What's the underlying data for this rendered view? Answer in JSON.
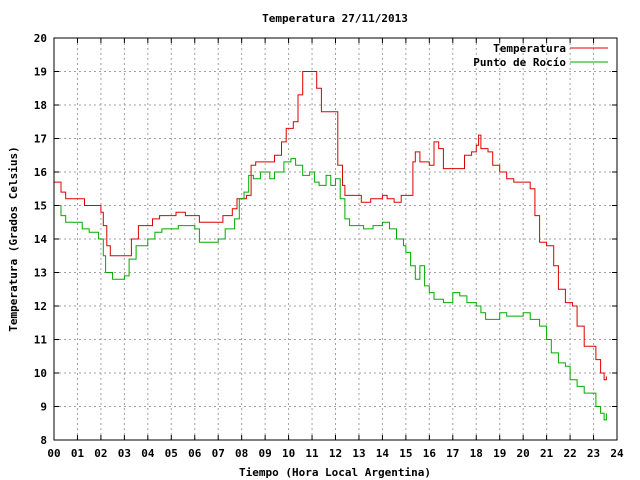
{
  "chart_data": {
    "type": "line",
    "title": "Temperatura 27/11/2013",
    "xlabel": "Tiempo (Hora Local Argentina)",
    "ylabel": "Temperatura (Grados Celsius)",
    "xlim": [
      0,
      24
    ],
    "ylim": [
      8,
      20
    ],
    "grid": true,
    "legend_position": "top-right",
    "x_tick_labels": [
      "00",
      "01",
      "02",
      "03",
      "04",
      "05",
      "06",
      "07",
      "08",
      "09",
      "10",
      "11",
      "12",
      "13",
      "14",
      "15",
      "16",
      "17",
      "18",
      "19",
      "20",
      "21",
      "22",
      "23",
      "24"
    ],
    "y_tick_labels": [
      "8",
      "9",
      "10",
      "11",
      "12",
      "13",
      "14",
      "15",
      "16",
      "17",
      "18",
      "19",
      "20"
    ],
    "series": [
      {
        "name": "Temperatura",
        "color": "#dd0000",
        "points": [
          [
            0,
            15.7
          ],
          [
            0.3,
            15.4
          ],
          [
            0.5,
            15.2
          ],
          [
            1.2,
            15.2
          ],
          [
            1.3,
            15.0
          ],
          [
            2.0,
            14.8
          ],
          [
            2.1,
            14.4
          ],
          [
            2.25,
            13.8
          ],
          [
            2.4,
            13.5
          ],
          [
            3.0,
            13.5
          ],
          [
            3.3,
            14.0
          ],
          [
            3.6,
            14.4
          ],
          [
            4.0,
            14.4
          ],
          [
            4.2,
            14.6
          ],
          [
            4.5,
            14.7
          ],
          [
            5.0,
            14.7
          ],
          [
            5.2,
            14.8
          ],
          [
            5.6,
            14.7
          ],
          [
            6.0,
            14.7
          ],
          [
            6.2,
            14.5
          ],
          [
            7.0,
            14.5
          ],
          [
            7.2,
            14.7
          ],
          [
            7.6,
            14.9
          ],
          [
            7.8,
            15.2
          ],
          [
            8.2,
            15.3
          ],
          [
            8.4,
            16.2
          ],
          [
            8.6,
            16.3
          ],
          [
            9.2,
            16.3
          ],
          [
            9.4,
            16.5
          ],
          [
            9.7,
            16.9
          ],
          [
            9.9,
            17.3
          ],
          [
            10.2,
            17.5
          ],
          [
            10.4,
            18.3
          ],
          [
            10.6,
            19.0
          ],
          [
            11.0,
            19.0
          ],
          [
            11.2,
            18.5
          ],
          [
            11.4,
            17.8
          ],
          [
            11.9,
            17.8
          ],
          [
            12.1,
            16.2
          ],
          [
            12.3,
            15.6
          ],
          [
            12.4,
            15.3
          ],
          [
            13.0,
            15.3
          ],
          [
            13.1,
            15.1
          ],
          [
            13.5,
            15.2
          ],
          [
            13.7,
            15.2
          ],
          [
            14.0,
            15.3
          ],
          [
            14.2,
            15.2
          ],
          [
            14.5,
            15.1
          ],
          [
            14.8,
            15.3
          ],
          [
            15.1,
            15.3
          ],
          [
            15.3,
            16.3
          ],
          [
            15.4,
            16.6
          ],
          [
            15.6,
            16.3
          ],
          [
            16.0,
            16.2
          ],
          [
            16.2,
            16.9
          ],
          [
            16.4,
            16.7
          ],
          [
            16.6,
            16.1
          ],
          [
            17.2,
            16.1
          ],
          [
            17.5,
            16.5
          ],
          [
            17.8,
            16.6
          ],
          [
            18.0,
            16.8
          ],
          [
            18.1,
            17.1
          ],
          [
            18.2,
            16.7
          ],
          [
            18.5,
            16.6
          ],
          [
            18.7,
            16.2
          ],
          [
            19.0,
            16.0
          ],
          [
            19.3,
            15.8
          ],
          [
            19.6,
            15.7
          ],
          [
            20.0,
            15.7
          ],
          [
            20.3,
            15.5
          ],
          [
            20.5,
            14.7
          ],
          [
            20.7,
            13.9
          ],
          [
            21.0,
            13.8
          ],
          [
            21.3,
            13.2
          ],
          [
            21.5,
            12.5
          ],
          [
            21.8,
            12.1
          ],
          [
            22.1,
            12.0
          ],
          [
            22.3,
            11.4
          ],
          [
            22.6,
            10.8
          ],
          [
            22.9,
            10.8
          ],
          [
            23.1,
            10.4
          ],
          [
            23.3,
            10.0
          ],
          [
            23.45,
            9.8
          ],
          [
            23.55,
            9.9
          ]
        ]
      },
      {
        "name": "Punto de Rocío",
        "color": "#00aa00",
        "points": [
          [
            0,
            15.0
          ],
          [
            0.3,
            14.7
          ],
          [
            0.5,
            14.5
          ],
          [
            1.0,
            14.5
          ],
          [
            1.2,
            14.3
          ],
          [
            1.5,
            14.2
          ],
          [
            1.9,
            14.0
          ],
          [
            2.1,
            13.5
          ],
          [
            2.2,
            13.0
          ],
          [
            2.5,
            12.8
          ],
          [
            3.0,
            12.9
          ],
          [
            3.2,
            13.4
          ],
          [
            3.5,
            13.8
          ],
          [
            4.0,
            14.0
          ],
          [
            4.3,
            14.2
          ],
          [
            4.6,
            14.3
          ],
          [
            5.0,
            14.3
          ],
          [
            5.3,
            14.4
          ],
          [
            6.0,
            14.3
          ],
          [
            6.2,
            13.9
          ],
          [
            7.0,
            14.0
          ],
          [
            7.3,
            14.3
          ],
          [
            7.7,
            14.6
          ],
          [
            7.9,
            15.2
          ],
          [
            8.1,
            15.4
          ],
          [
            8.3,
            15.9
          ],
          [
            8.5,
            15.8
          ],
          [
            8.8,
            16.0
          ],
          [
            9.2,
            15.8
          ],
          [
            9.4,
            16.0
          ],
          [
            9.8,
            16.3
          ],
          [
            10.1,
            16.4
          ],
          [
            10.3,
            16.2
          ],
          [
            10.6,
            15.9
          ],
          [
            10.9,
            16.0
          ],
          [
            11.1,
            15.7
          ],
          [
            11.3,
            15.6
          ],
          [
            11.6,
            15.9
          ],
          [
            11.8,
            15.6
          ],
          [
            12.0,
            15.8
          ],
          [
            12.2,
            15.2
          ],
          [
            12.4,
            14.6
          ],
          [
            12.6,
            14.4
          ],
          [
            13.0,
            14.4
          ],
          [
            13.2,
            14.3
          ],
          [
            13.6,
            14.4
          ],
          [
            14.0,
            14.5
          ],
          [
            14.3,
            14.3
          ],
          [
            14.6,
            14.0
          ],
          [
            14.9,
            13.8
          ],
          [
            15.0,
            13.6
          ],
          [
            15.2,
            13.2
          ],
          [
            15.4,
            12.8
          ],
          [
            15.6,
            13.2
          ],
          [
            15.8,
            12.6
          ],
          [
            16.0,
            12.4
          ],
          [
            16.2,
            12.2
          ],
          [
            16.4,
            12.2
          ],
          [
            16.6,
            12.1
          ],
          [
            17.0,
            12.4
          ],
          [
            17.3,
            12.3
          ],
          [
            17.6,
            12.1
          ],
          [
            18.0,
            12.0
          ],
          [
            18.2,
            11.8
          ],
          [
            18.4,
            11.6
          ],
          [
            18.7,
            11.6
          ],
          [
            19.0,
            11.8
          ],
          [
            19.3,
            11.7
          ],
          [
            19.6,
            11.7
          ],
          [
            20.0,
            11.8
          ],
          [
            20.3,
            11.6
          ],
          [
            20.7,
            11.4
          ],
          [
            21.0,
            11.0
          ],
          [
            21.2,
            10.6
          ],
          [
            21.5,
            10.3
          ],
          [
            21.8,
            10.2
          ],
          [
            22.0,
            9.8
          ],
          [
            22.3,
            9.6
          ],
          [
            22.6,
            9.4
          ],
          [
            22.9,
            9.4
          ],
          [
            23.1,
            9.0
          ],
          [
            23.3,
            8.8
          ],
          [
            23.45,
            8.6
          ],
          [
            23.55,
            8.8
          ]
        ]
      }
    ]
  }
}
